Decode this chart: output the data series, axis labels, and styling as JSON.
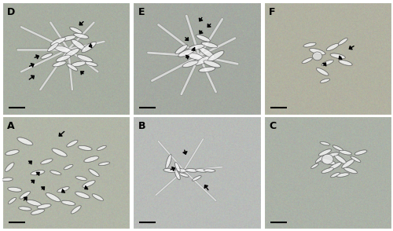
{
  "figsize": [
    5.0,
    2.94
  ],
  "dpi": 100,
  "gap_color": "#ffffff",
  "panel_labels": [
    "A",
    "B",
    "C",
    "D",
    "E",
    "F"
  ],
  "panel_bg": {
    "A": [
      178,
      182,
      168
    ],
    "B": [
      185,
      188,
      185
    ],
    "C": [
      172,
      178,
      168
    ],
    "D": [
      168,
      174,
      162
    ],
    "E": [
      165,
      170,
      162
    ],
    "F": [
      178,
      178,
      162
    ]
  },
  "label_fontsize": 9,
  "scalebar_lw": 1.5,
  "arrow_lw": 1.0,
  "arrow_ms": 7,
  "cells_A": [
    [
      0.18,
      0.78,
      0.13,
      0.045,
      -25
    ],
    [
      0.08,
      0.68,
      0.11,
      0.038,
      15
    ],
    [
      0.06,
      0.55,
      0.1,
      0.035,
      50
    ],
    [
      0.04,
      0.44,
      0.09,
      0.03,
      5
    ],
    [
      0.1,
      0.35,
      0.11,
      0.038,
      -8
    ],
    [
      0.18,
      0.3,
      0.1,
      0.032,
      38
    ],
    [
      0.25,
      0.23,
      0.12,
      0.04,
      -18
    ],
    [
      0.33,
      0.2,
      0.11,
      0.036,
      12
    ],
    [
      0.4,
      0.28,
      0.13,
      0.042,
      -32
    ],
    [
      0.48,
      0.35,
      0.1,
      0.032,
      22
    ],
    [
      0.52,
      0.23,
      0.11,
      0.036,
      -12
    ],
    [
      0.58,
      0.17,
      0.1,
      0.032,
      42
    ],
    [
      0.63,
      0.3,
      0.12,
      0.04,
      -22
    ],
    [
      0.68,
      0.4,
      0.11,
      0.036,
      28
    ],
    [
      0.72,
      0.5,
      0.1,
      0.032,
      -38
    ],
    [
      0.7,
      0.62,
      0.12,
      0.04,
      18
    ],
    [
      0.65,
      0.72,
      0.11,
      0.036,
      -12
    ],
    [
      0.55,
      0.76,
      0.1,
      0.032,
      32
    ],
    [
      0.45,
      0.68,
      0.13,
      0.042,
      -28
    ],
    [
      0.35,
      0.6,
      0.1,
      0.032,
      22
    ],
    [
      0.28,
      0.5,
      0.11,
      0.036,
      12
    ],
    [
      0.42,
      0.5,
      0.09,
      0.028,
      -18
    ],
    [
      0.52,
      0.55,
      0.08,
      0.026,
      28
    ],
    [
      0.18,
      0.18,
      0.1,
      0.032,
      -8
    ],
    [
      0.28,
      0.15,
      0.11,
      0.036,
      18
    ],
    [
      0.75,
      0.28,
      0.1,
      0.032,
      -32
    ],
    [
      0.8,
      0.58,
      0.09,
      0.026,
      12
    ],
    [
      0.08,
      0.25,
      0.08,
      0.026,
      42
    ],
    [
      0.62,
      0.45,
      0.09,
      0.03,
      -15
    ],
    [
      0.78,
      0.72,
      0.08,
      0.026,
      25
    ]
  ],
  "arrows_A": [
    [
      0.5,
      0.88,
      -0.07,
      -0.07
    ],
    [
      0.2,
      0.57,
      0.05,
      0.05
    ],
    [
      0.26,
      0.47,
      0.05,
      0.05
    ],
    [
      0.22,
      0.4,
      0.05,
      0.05
    ],
    [
      0.3,
      0.34,
      0.05,
      0.05
    ],
    [
      0.16,
      0.24,
      0.05,
      0.06
    ],
    [
      0.5,
      0.35,
      -0.05,
      -0.04
    ],
    [
      0.68,
      0.38,
      -0.05,
      -0.04
    ]
  ],
  "cells_B": [
    [
      0.3,
      0.52,
      0.12,
      0.035,
      -5
    ],
    [
      0.38,
      0.52,
      0.1,
      0.03,
      -5
    ],
    [
      0.46,
      0.52,
      0.1,
      0.03,
      -5
    ],
    [
      0.54,
      0.52,
      0.1,
      0.03,
      -5
    ],
    [
      0.6,
      0.52,
      0.09,
      0.028,
      -5
    ],
    [
      0.35,
      0.55,
      0.09,
      0.028,
      -70
    ],
    [
      0.35,
      0.48,
      0.09,
      0.028,
      -70
    ],
    [
      0.28,
      0.6,
      0.13,
      0.03,
      75
    ],
    [
      0.5,
      0.45,
      0.08,
      0.025,
      30
    ],
    [
      0.4,
      0.48,
      0.08,
      0.025,
      -20
    ]
  ],
  "neurites_B": [
    [
      0.4,
      0.52,
      0.2,
      0.78,
      -30
    ],
    [
      0.4,
      0.52,
      0.7,
      0.55,
      0
    ],
    [
      0.4,
      0.52,
      0.55,
      0.8,
      -60
    ],
    [
      0.4,
      0.52,
      0.18,
      0.3,
      20
    ],
    [
      0.4,
      0.52,
      0.65,
      0.25,
      15
    ]
  ],
  "arrows_B": [
    [
      0.4,
      0.72,
      0.02,
      -0.08
    ],
    [
      0.28,
      0.52,
      0.07,
      0.03
    ],
    [
      0.6,
      0.33,
      -0.05,
      0.08
    ]
  ],
  "cells_C_cluster": [
    [
      0.5,
      0.6,
      0.13,
      0.042,
      -18
    ],
    [
      0.56,
      0.56,
      0.11,
      0.036,
      32
    ],
    [
      0.6,
      0.62,
      0.12,
      0.038,
      -40
    ],
    [
      0.54,
      0.66,
      0.1,
      0.032,
      15
    ],
    [
      0.48,
      0.68,
      0.11,
      0.035,
      28
    ],
    [
      0.64,
      0.68,
      0.1,
      0.032,
      -15
    ],
    [
      0.66,
      0.58,
      0.12,
      0.038,
      38
    ],
    [
      0.58,
      0.72,
      0.09,
      0.026,
      -28
    ],
    [
      0.5,
      0.52,
      0.1,
      0.032,
      22
    ],
    [
      0.68,
      0.52,
      0.11,
      0.035,
      -22
    ],
    [
      0.44,
      0.62,
      0.09,
      0.026,
      42
    ],
    [
      0.62,
      0.48,
      0.1,
      0.032,
      12
    ],
    [
      0.72,
      0.62,
      0.09,
      0.026,
      -32
    ],
    [
      0.56,
      0.48,
      0.08,
      0.026,
      28
    ],
    [
      0.76,
      0.68,
      0.1,
      0.032,
      18
    ],
    [
      0.48,
      0.76,
      0.08,
      0.024,
      -15
    ],
    [
      0.4,
      0.56,
      0.07,
      0.022,
      35
    ]
  ],
  "cells_D_cluster": [
    [
      0.48,
      0.58,
      0.15,
      0.05,
      -18
    ],
    [
      0.55,
      0.55,
      0.13,
      0.044,
      32
    ],
    [
      0.6,
      0.62,
      0.14,
      0.046,
      -40
    ],
    [
      0.52,
      0.68,
      0.12,
      0.04,
      15
    ],
    [
      0.44,
      0.65,
      0.13,
      0.042,
      28
    ],
    [
      0.62,
      0.7,
      0.12,
      0.038,
      -15
    ],
    [
      0.68,
      0.6,
      0.14,
      0.046,
      38
    ],
    [
      0.58,
      0.75,
      0.11,
      0.034,
      -28
    ],
    [
      0.48,
      0.5,
      0.12,
      0.04,
      22
    ],
    [
      0.65,
      0.5,
      0.13,
      0.042,
      -22
    ],
    [
      0.4,
      0.6,
      0.11,
      0.034,
      42
    ],
    [
      0.6,
      0.45,
      0.12,
      0.04,
      12
    ],
    [
      0.35,
      0.52,
      0.1,
      0.032,
      25
    ],
    [
      0.55,
      0.42,
      0.1,
      0.032,
      -35
    ],
    [
      0.45,
      0.45,
      0.11,
      0.036,
      18
    ],
    [
      0.7,
      0.45,
      0.1,
      0.032,
      -15
    ]
  ],
  "neurites_D": [
    [
      0.52,
      0.58,
      0.72,
      0.82,
      0
    ],
    [
      0.52,
      0.58,
      0.8,
      0.65,
      0
    ],
    [
      0.52,
      0.58,
      0.75,
      0.38,
      0
    ],
    [
      0.52,
      0.58,
      0.55,
      0.22,
      0
    ],
    [
      0.52,
      0.58,
      0.3,
      0.22,
      0
    ],
    [
      0.52,
      0.58,
      0.15,
      0.38,
      0
    ],
    [
      0.52,
      0.58,
      0.12,
      0.58,
      0
    ],
    [
      0.52,
      0.58,
      0.15,
      0.78,
      0
    ],
    [
      0.52,
      0.58,
      0.38,
      0.82,
      0
    ]
  ],
  "arrows_D": [
    [
      0.65,
      0.84,
      -0.06,
      -0.06
    ],
    [
      0.72,
      0.62,
      -0.06,
      -0.02
    ],
    [
      0.65,
      0.35,
      -0.05,
      0.05
    ],
    [
      0.24,
      0.5,
      0.07,
      0.03
    ],
    [
      0.2,
      0.42,
      0.07,
      0.04
    ],
    [
      0.2,
      0.3,
      0.07,
      0.06
    ]
  ],
  "cells_E_cluster": [
    [
      0.48,
      0.52,
      0.16,
      0.052,
      -18
    ],
    [
      0.55,
      0.48,
      0.14,
      0.046,
      32
    ],
    [
      0.58,
      0.55,
      0.15,
      0.048,
      -38
    ],
    [
      0.5,
      0.6,
      0.13,
      0.042,
      15
    ],
    [
      0.42,
      0.55,
      0.14,
      0.044,
      25
    ],
    [
      0.6,
      0.62,
      0.13,
      0.04,
      -15
    ],
    [
      0.65,
      0.52,
      0.15,
      0.048,
      35
    ],
    [
      0.55,
      0.68,
      0.12,
      0.038,
      -25
    ],
    [
      0.45,
      0.45,
      0.13,
      0.042,
      20
    ],
    [
      0.62,
      0.45,
      0.14,
      0.044,
      -20
    ],
    [
      0.38,
      0.58,
      0.12,
      0.038,
      40
    ],
    [
      0.58,
      0.4,
      0.13,
      0.042,
      10
    ]
  ],
  "neurites_E": [
    [
      0.52,
      0.52,
      0.7,
      0.85,
      0
    ],
    [
      0.52,
      0.52,
      0.8,
      0.68,
      0
    ],
    [
      0.52,
      0.52,
      0.82,
      0.45,
      0
    ],
    [
      0.52,
      0.52,
      0.65,
      0.2,
      0
    ],
    [
      0.52,
      0.52,
      0.38,
      0.18,
      0
    ],
    [
      0.52,
      0.52,
      0.15,
      0.3,
      0
    ],
    [
      0.52,
      0.52,
      0.12,
      0.55,
      0
    ],
    [
      0.52,
      0.52,
      0.2,
      0.8,
      0
    ],
    [
      0.52,
      0.52,
      0.42,
      0.88,
      0
    ]
  ],
  "arrows_E": [
    [
      0.55,
      0.88,
      -0.04,
      -0.07
    ],
    [
      0.62,
      0.82,
      -0.05,
      -0.06
    ],
    [
      0.55,
      0.76,
      -0.04,
      -0.06
    ],
    [
      0.4,
      0.7,
      0.05,
      -0.06
    ],
    [
      0.46,
      0.6,
      0.04,
      -0.05
    ],
    [
      0.4,
      0.5,
      0.06,
      0.03
    ]
  ],
  "cells_F": [
    [
      0.42,
      0.56,
      0.13,
      0.042,
      -18
    ],
    [
      0.54,
      0.6,
      0.11,
      0.036,
      30
    ],
    [
      0.58,
      0.52,
      0.12,
      0.038,
      -14
    ],
    [
      0.5,
      0.46,
      0.1,
      0.032,
      24
    ],
    [
      0.46,
      0.38,
      0.11,
      0.036,
      -33
    ],
    [
      0.62,
      0.65,
      0.09,
      0.028,
      38
    ],
    [
      0.36,
      0.62,
      0.1,
      0.032,
      14
    ],
    [
      0.64,
      0.46,
      0.11,
      0.036,
      -18
    ],
    [
      0.34,
      0.48,
      0.09,
      0.028,
      28
    ],
    [
      0.48,
      0.3,
      0.08,
      0.026,
      20
    ]
  ],
  "arrows_F": [
    [
      0.72,
      0.62,
      -0.07,
      -0.05
    ],
    [
      0.62,
      0.52,
      -0.05,
      -0.04
    ],
    [
      0.46,
      0.42,
      0.04,
      0.06
    ]
  ]
}
